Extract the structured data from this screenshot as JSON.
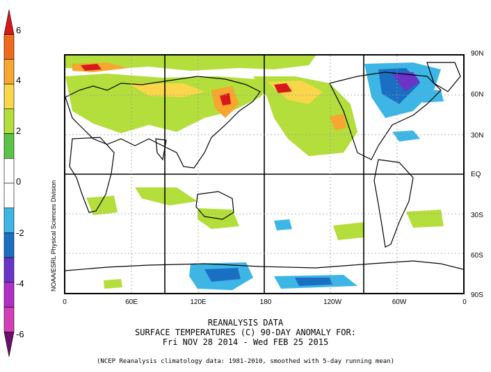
{
  "colorbar": {
    "labels": [
      "6",
      "4",
      "2",
      "0",
      "-2",
      "-4",
      "-6"
    ],
    "colors": [
      "#d7191c",
      "#ef6a1a",
      "#f7a630",
      "#f9d64a",
      "#b3de3c",
      "#5ac447",
      "#ffffff",
      "#ffffff",
      "#3db6e6",
      "#1b6fc2",
      "#6a34c8",
      "#b02fc9",
      "#d43fb8",
      "#6e0f6b"
    ]
  },
  "map": {
    "lat_labels": [
      "90N",
      "60N",
      "30N",
      "EQ",
      "30S",
      "60S",
      "90S"
    ],
    "lon_labels": [
      "0",
      "60E",
      "120E",
      "180",
      "120W",
      "60W",
      "0"
    ],
    "side_credit": "NOAA/ESRL Physical Sciences Division"
  },
  "title": {
    "line1": "REANALYSIS DATA",
    "line2": "SURFACE TEMPERATURES (C)   90-DAY ANOMALY FOR:",
    "line3": "Fri NOV 28 2014 - Wed FEB 25 2015"
  },
  "footnote": "(NCEP Reanalysis climatology data: 1981-2010, smoothed with 5-day running mean)"
}
